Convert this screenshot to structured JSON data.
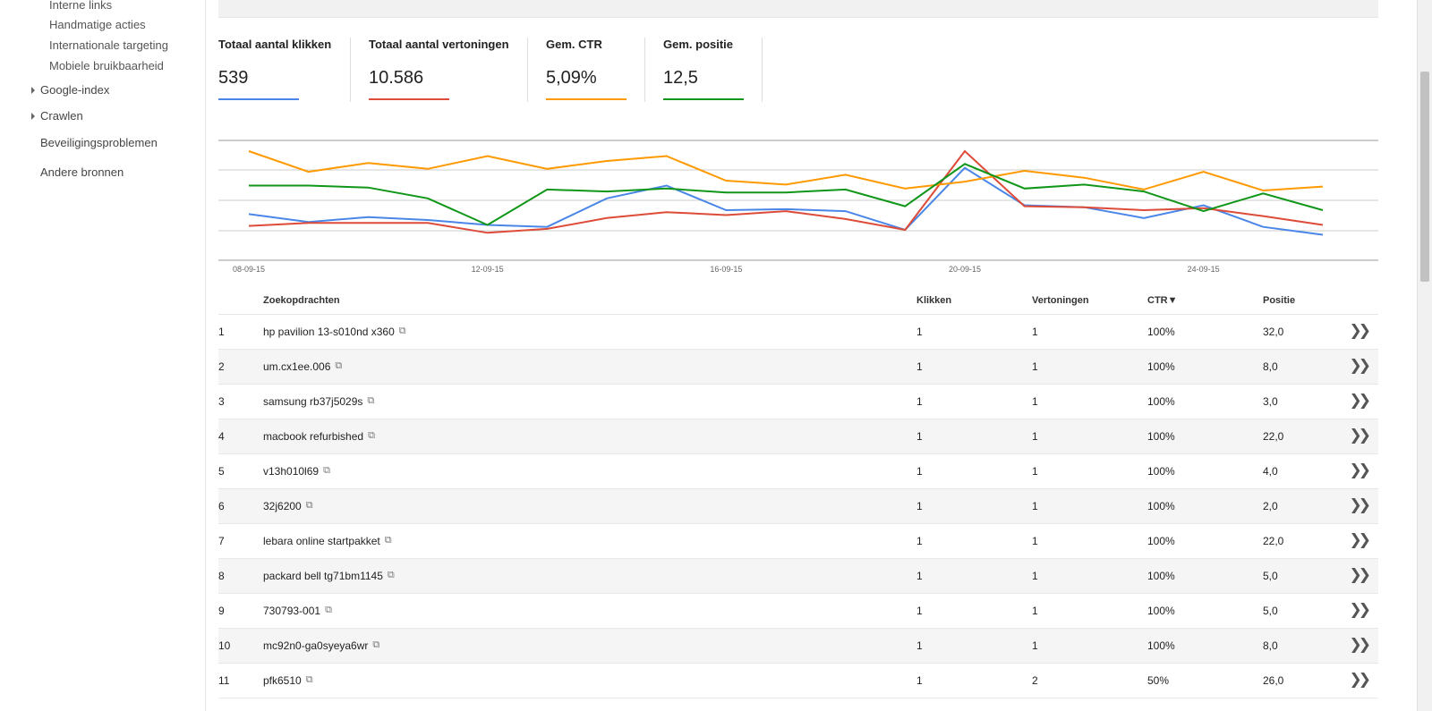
{
  "sidebar": {
    "sub_items": [
      "Interne links",
      "Handmatige acties",
      "Internationale targeting",
      "Mobiele bruikbaarheid"
    ],
    "expandable": [
      "Google-index",
      "Crawlen"
    ],
    "top_items": [
      "Beveiligingsproblemen",
      "Andere bronnen"
    ]
  },
  "metrics": [
    {
      "label": "Totaal aantal klikken",
      "value": "539",
      "color": "#4a86e8"
    },
    {
      "label": "Totaal aantal vertoningen",
      "value": "10.586",
      "color": "#dd4b39"
    },
    {
      "label": "Gem. CTR",
      "value": "5,09%",
      "color": "#ff9900"
    },
    {
      "label": "Gem. positie",
      "value": "12,5",
      "color": "#109618"
    }
  ],
  "chart_data": {
    "type": "line",
    "x_tick_labels": [
      "08-09-15",
      "12-09-15",
      "16-09-15",
      "20-09-15",
      "24-09-15"
    ],
    "series": [
      {
        "name": "Totaal aantal klikken",
        "color": "#4a86e8",
        "values": [
          0.64,
          0.72,
          0.67,
          0.7,
          0.75,
          0.77,
          0.48,
          0.35,
          0.6,
          0.59,
          0.61,
          0.8,
          0.17,
          0.55,
          0.57,
          0.68,
          0.55,
          0.77,
          0.85
        ]
      },
      {
        "name": "Totaal aantal vertoningen",
        "color": "#dd4b39",
        "values": [
          0.76,
          0.73,
          0.73,
          0.73,
          0.83,
          0.79,
          0.68,
          0.62,
          0.65,
          0.61,
          0.69,
          0.8,
          0.0,
          0.56,
          0.57,
          0.6,
          0.58,
          0.66,
          0.75
        ]
      },
      {
        "name": "Gem. CTR",
        "color": "#ff9900",
        "values": [
          0.0,
          0.21,
          0.12,
          0.18,
          0.05,
          0.18,
          0.1,
          0.05,
          0.3,
          0.34,
          0.24,
          0.38,
          0.31,
          0.2,
          0.27,
          0.39,
          0.21,
          0.4,
          0.36
        ]
      },
      {
        "name": "Gem. positie",
        "color": "#109618",
        "values": [
          0.35,
          0.35,
          0.37,
          0.48,
          0.75,
          0.39,
          0.41,
          0.38,
          0.42,
          0.42,
          0.39,
          0.56,
          0.13,
          0.38,
          0.34,
          0.41,
          0.61,
          0.43,
          0.6
        ]
      }
    ],
    "grid": true
  },
  "table": {
    "headers": {
      "query": "Zoekopdrachten",
      "clicks": "Klikken",
      "impressions": "Vertoningen",
      "ctr": "CTR▼",
      "position": "Positie"
    },
    "rows": [
      {
        "n": "1",
        "query": "hp pavilion 13-s010nd x360",
        "clicks": "1",
        "impressions": "1",
        "ctr": "100%",
        "position": "32,0"
      },
      {
        "n": "2",
        "query": "um.cx1ee.006",
        "clicks": "1",
        "impressions": "1",
        "ctr": "100%",
        "position": "8,0"
      },
      {
        "n": "3",
        "query": "samsung rb37j5029s",
        "clicks": "1",
        "impressions": "1",
        "ctr": "100%",
        "position": "3,0"
      },
      {
        "n": "4",
        "query": "macbook refurbished",
        "clicks": "1",
        "impressions": "1",
        "ctr": "100%",
        "position": "22,0"
      },
      {
        "n": "5",
        "query": "v13h010l69",
        "clicks": "1",
        "impressions": "1",
        "ctr": "100%",
        "position": "4,0"
      },
      {
        "n": "6",
        "query": "32j6200",
        "clicks": "1",
        "impressions": "1",
        "ctr": "100%",
        "position": "2,0"
      },
      {
        "n": "7",
        "query": "lebara online startpakket",
        "clicks": "1",
        "impressions": "1",
        "ctr": "100%",
        "position": "22,0"
      },
      {
        "n": "8",
        "query": "packard bell tg71bm1145",
        "clicks": "1",
        "impressions": "1",
        "ctr": "100%",
        "position": "5,0"
      },
      {
        "n": "9",
        "query": "730793-001",
        "clicks": "1",
        "impressions": "1",
        "ctr": "100%",
        "position": "5,0"
      },
      {
        "n": "10",
        "query": "mc92n0-ga0syeya6wr",
        "clicks": "1",
        "impressions": "1",
        "ctr": "100%",
        "position": "8,0"
      },
      {
        "n": "11",
        "query": "pfk6510",
        "clicks": "1",
        "impressions": "2",
        "ctr": "50%",
        "position": "26,0"
      }
    ]
  },
  "icons": {
    "external": "external-link-icon",
    "more": "double-chevron-right-icon",
    "expand": "triangle-right-icon"
  }
}
